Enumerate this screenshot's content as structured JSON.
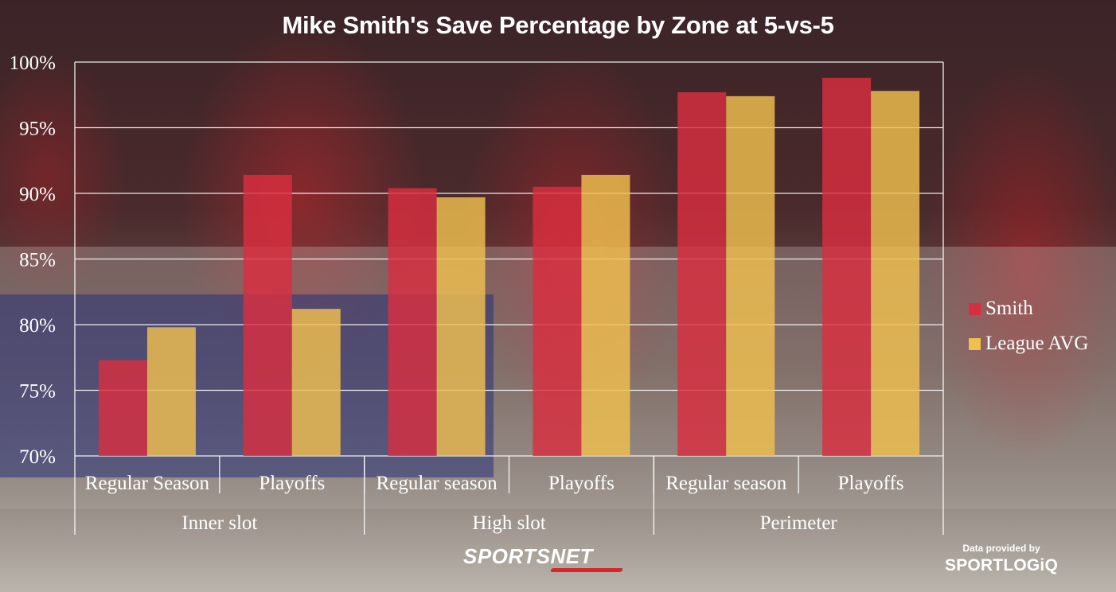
{
  "chart_data": {
    "type": "bar",
    "title": "Mike Smith's Save Percentage by Zone at 5-vs-5",
    "xlabel": "",
    "ylabel": "",
    "ylim": [
      70,
      100
    ],
    "yticks": [
      70,
      75,
      80,
      85,
      90,
      95,
      100
    ],
    "ytick_labels": [
      "70%",
      "75%",
      "80%",
      "85%",
      "90%",
      "95%",
      "100%"
    ],
    "grid": "horizontal",
    "legend_position": "right",
    "categories": [
      "Regular Season",
      "Playoffs",
      "Regular season",
      "Playoffs",
      "Regular season",
      "Playoffs"
    ],
    "groups": [
      {
        "label": "Inner slot",
        "span": 2
      },
      {
        "label": "High slot",
        "span": 2
      },
      {
        "label": "Perimeter",
        "span": 2
      }
    ],
    "series": [
      {
        "name": "Smith",
        "color": "#d92e3f",
        "values": [
          77.3,
          91.4,
          90.4,
          90.5,
          97.7,
          98.8
        ]
      },
      {
        "name": "League AVG",
        "color": "#f0c04f",
        "values": [
          79.8,
          81.2,
          89.7,
          91.4,
          97.4,
          97.8
        ]
      }
    ]
  },
  "branding": {
    "sportsnet": "SPORTSNET",
    "credit_line": "Data provided by",
    "sportlogiq": "SPORTLOGiQ"
  }
}
